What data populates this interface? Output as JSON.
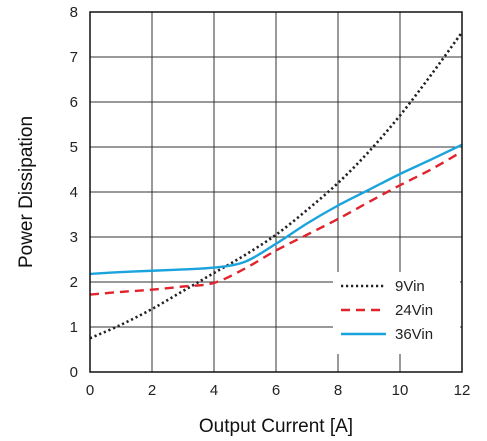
{
  "chart_data": {
    "type": "line",
    "title": "",
    "xlabel": "Output Current [A]",
    "ylabel": "Power Dissipation",
    "xlim": [
      0,
      12
    ],
    "ylim": [
      0,
      8
    ],
    "xticks": [
      0,
      2,
      4,
      6,
      8,
      10,
      12
    ],
    "yticks": [
      0,
      1,
      2,
      3,
      4,
      5,
      6,
      7,
      8
    ],
    "grid": true,
    "legend_position": "bottom-right",
    "series": [
      {
        "name": "9Vin",
        "color": "#222222",
        "style": "dotted",
        "x": [
          0,
          1,
          2,
          3,
          4,
          5,
          6,
          7,
          8,
          9,
          10,
          11,
          12
        ],
        "y": [
          0.75,
          1.05,
          1.4,
          1.8,
          2.2,
          2.6,
          3.05,
          3.6,
          4.2,
          4.9,
          5.7,
          6.6,
          7.55
        ]
      },
      {
        "name": "24Vin",
        "color": "#e0232c",
        "style": "dashed",
        "x": [
          0,
          1,
          2,
          3,
          4,
          5,
          6,
          7,
          8,
          9,
          10,
          11,
          12
        ],
        "y": [
          1.72,
          1.78,
          1.83,
          1.9,
          1.98,
          2.3,
          2.7,
          3.05,
          3.4,
          3.78,
          4.15,
          4.5,
          4.9
        ]
      },
      {
        "name": "36Vin",
        "color": "#1aa3dc",
        "style": "solid",
        "x": [
          0,
          1,
          2,
          3,
          4,
          5,
          6,
          7,
          8,
          9,
          10,
          11,
          12
        ],
        "y": [
          2.18,
          2.22,
          2.25,
          2.28,
          2.32,
          2.45,
          2.85,
          3.3,
          3.7,
          4.05,
          4.4,
          4.72,
          5.05
        ]
      }
    ]
  }
}
